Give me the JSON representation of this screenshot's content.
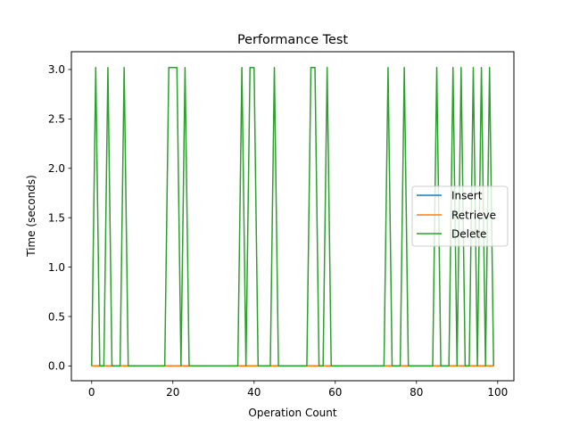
{
  "chart_data": {
    "type": "line",
    "title": "Performance Test",
    "xlabel": "Operation Count",
    "ylabel": "Time (seconds)",
    "xlim": [
      -5,
      104
    ],
    "ylim": [
      -0.15,
      3.18
    ],
    "xticks": [
      0,
      20,
      40,
      60,
      80,
      100
    ],
    "yticks": [
      "0.0",
      "0.5",
      "1.0",
      "1.5",
      "2.0",
      "2.5",
      "3.0"
    ],
    "grid": false,
    "legend_position": "center-right",
    "x": [
      0,
      1,
      2,
      3,
      4,
      5,
      6,
      7,
      8,
      9,
      10,
      11,
      12,
      13,
      14,
      15,
      16,
      17,
      18,
      19,
      20,
      21,
      22,
      23,
      24,
      25,
      26,
      27,
      28,
      29,
      30,
      31,
      32,
      33,
      34,
      35,
      36,
      37,
      38,
      39,
      40,
      41,
      42,
      43,
      44,
      45,
      46,
      47,
      48,
      49,
      50,
      51,
      52,
      53,
      54,
      55,
      56,
      57,
      58,
      59,
      60,
      61,
      62,
      63,
      64,
      65,
      66,
      67,
      68,
      69,
      70,
      71,
      72,
      73,
      74,
      75,
      76,
      77,
      78,
      79,
      80,
      81,
      82,
      83,
      84,
      85,
      86,
      87,
      88,
      89,
      90,
      91,
      92,
      93,
      94,
      95,
      96,
      97,
      98,
      99
    ],
    "series": [
      {
        "name": "Insert",
        "color": "#1f77b4",
        "values": [
          0,
          0,
          0,
          0,
          0,
          0,
          0,
          0,
          0,
          0,
          0,
          0,
          0,
          0,
          0,
          0,
          0,
          0,
          0,
          0,
          0,
          0,
          0,
          0,
          0,
          0,
          0,
          0,
          0,
          0,
          0,
          0,
          0,
          0,
          0,
          0,
          0,
          0,
          0,
          0,
          0,
          0,
          0,
          0,
          0,
          0,
          0,
          0,
          0,
          0,
          0,
          0,
          0,
          0,
          0,
          0,
          0,
          0,
          0,
          0,
          0,
          0,
          0,
          0,
          0,
          0,
          0,
          0,
          0,
          0,
          0,
          0,
          0,
          0,
          0,
          0,
          0,
          0,
          0,
          0,
          0,
          0,
          0,
          0,
          0,
          0,
          0,
          0,
          0,
          0,
          0,
          0,
          0,
          0,
          0,
          0,
          0,
          0,
          0,
          0
        ]
      },
      {
        "name": "Retrieve",
        "color": "#ff7f0e",
        "values": [
          0,
          0,
          0,
          0,
          0,
          0,
          0,
          0,
          0,
          0,
          0,
          0,
          0,
          0,
          0,
          0,
          0,
          0,
          0,
          0,
          0,
          0,
          0,
          0,
          0,
          0,
          0,
          0,
          0,
          0,
          0,
          0,
          0,
          0,
          0,
          0,
          0,
          0,
          0,
          0,
          0,
          0,
          0,
          0,
          0,
          0,
          0,
          0,
          0,
          0,
          0,
          0,
          0,
          0,
          0,
          0,
          0,
          0,
          0,
          0,
          0,
          0,
          0,
          0,
          0,
          0,
          0,
          0,
          0,
          0,
          0,
          0,
          0,
          0,
          0,
          0,
          0,
          0,
          0,
          0,
          0,
          0,
          0,
          0,
          0,
          0,
          0,
          0,
          0,
          0,
          0,
          0,
          0,
          0,
          0,
          0,
          0,
          0,
          0,
          0
        ]
      },
      {
        "name": "Delete",
        "color": "#2ca02c",
        "values": [
          0,
          3.02,
          0,
          0,
          3.02,
          0,
          0,
          0,
          3.02,
          0,
          0,
          0,
          0,
          0,
          0,
          0,
          0,
          0,
          0,
          3.02,
          3.02,
          3.02,
          0,
          3.02,
          0,
          0,
          0,
          0,
          0,
          0,
          0,
          0,
          0,
          0,
          0,
          0,
          0,
          3.02,
          0,
          3.02,
          3.02,
          0,
          0,
          0,
          0,
          3.02,
          0,
          0,
          0,
          0,
          0,
          0,
          0,
          0,
          3.02,
          3.02,
          0,
          0,
          3.02,
          0,
          0,
          0,
          0,
          0,
          0,
          0,
          0,
          0,
          0,
          0,
          0,
          0,
          0,
          3.02,
          0,
          0,
          0,
          3.02,
          0,
          0,
          0,
          0,
          0,
          0,
          0,
          3.02,
          0,
          0,
          0,
          3.02,
          0,
          3.02,
          0,
          0,
          3.02,
          0,
          3.02,
          0,
          3.02,
          0
        ]
      }
    ]
  }
}
